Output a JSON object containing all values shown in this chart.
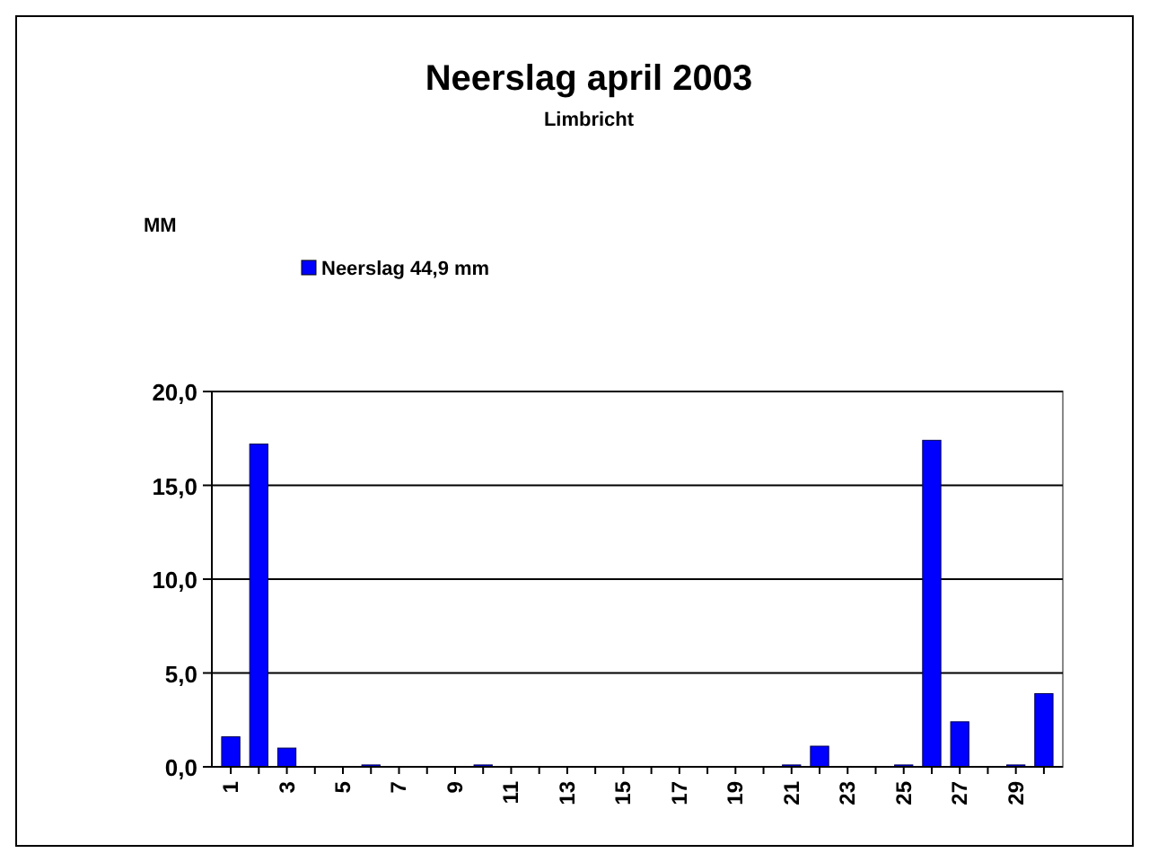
{
  "chart_data": {
    "type": "bar",
    "title": "Neerslag april 2003",
    "subtitle": "Limbricht",
    "annotations": [
      "MM"
    ],
    "categories": [
      "1",
      null,
      "3",
      null,
      "5",
      null,
      "7",
      null,
      "9",
      null,
      "11",
      null,
      "13",
      null,
      "15",
      null,
      "17",
      null,
      "19",
      null,
      "21",
      null,
      "23",
      null,
      "25",
      null,
      "27",
      null,
      "29",
      null
    ],
    "series": [
      {
        "name": "Neerslag 44,9 mm",
        "color": "#0000ff",
        "values": [
          1.6,
          17.2,
          1.0,
          0,
          0,
          0.1,
          0,
          0,
          0,
          0.1,
          0,
          0,
          0,
          0,
          0,
          0,
          0,
          0,
          0,
          0,
          0.1,
          1.1,
          0,
          0,
          0.1,
          17.4,
          2.4,
          0,
          0.1,
          3.9
        ]
      }
    ],
    "ylim": [
      0,
      20
    ],
    "yticks": [
      {
        "value": 0,
        "label": "0,0"
      },
      {
        "value": 5,
        "label": "5,0"
      },
      {
        "value": 10,
        "label": "10,0"
      },
      {
        "value": 15,
        "label": "15,0"
      },
      {
        "value": 20,
        "label": "20,0"
      }
    ],
    "grid": "y",
    "legend": "top left"
  }
}
